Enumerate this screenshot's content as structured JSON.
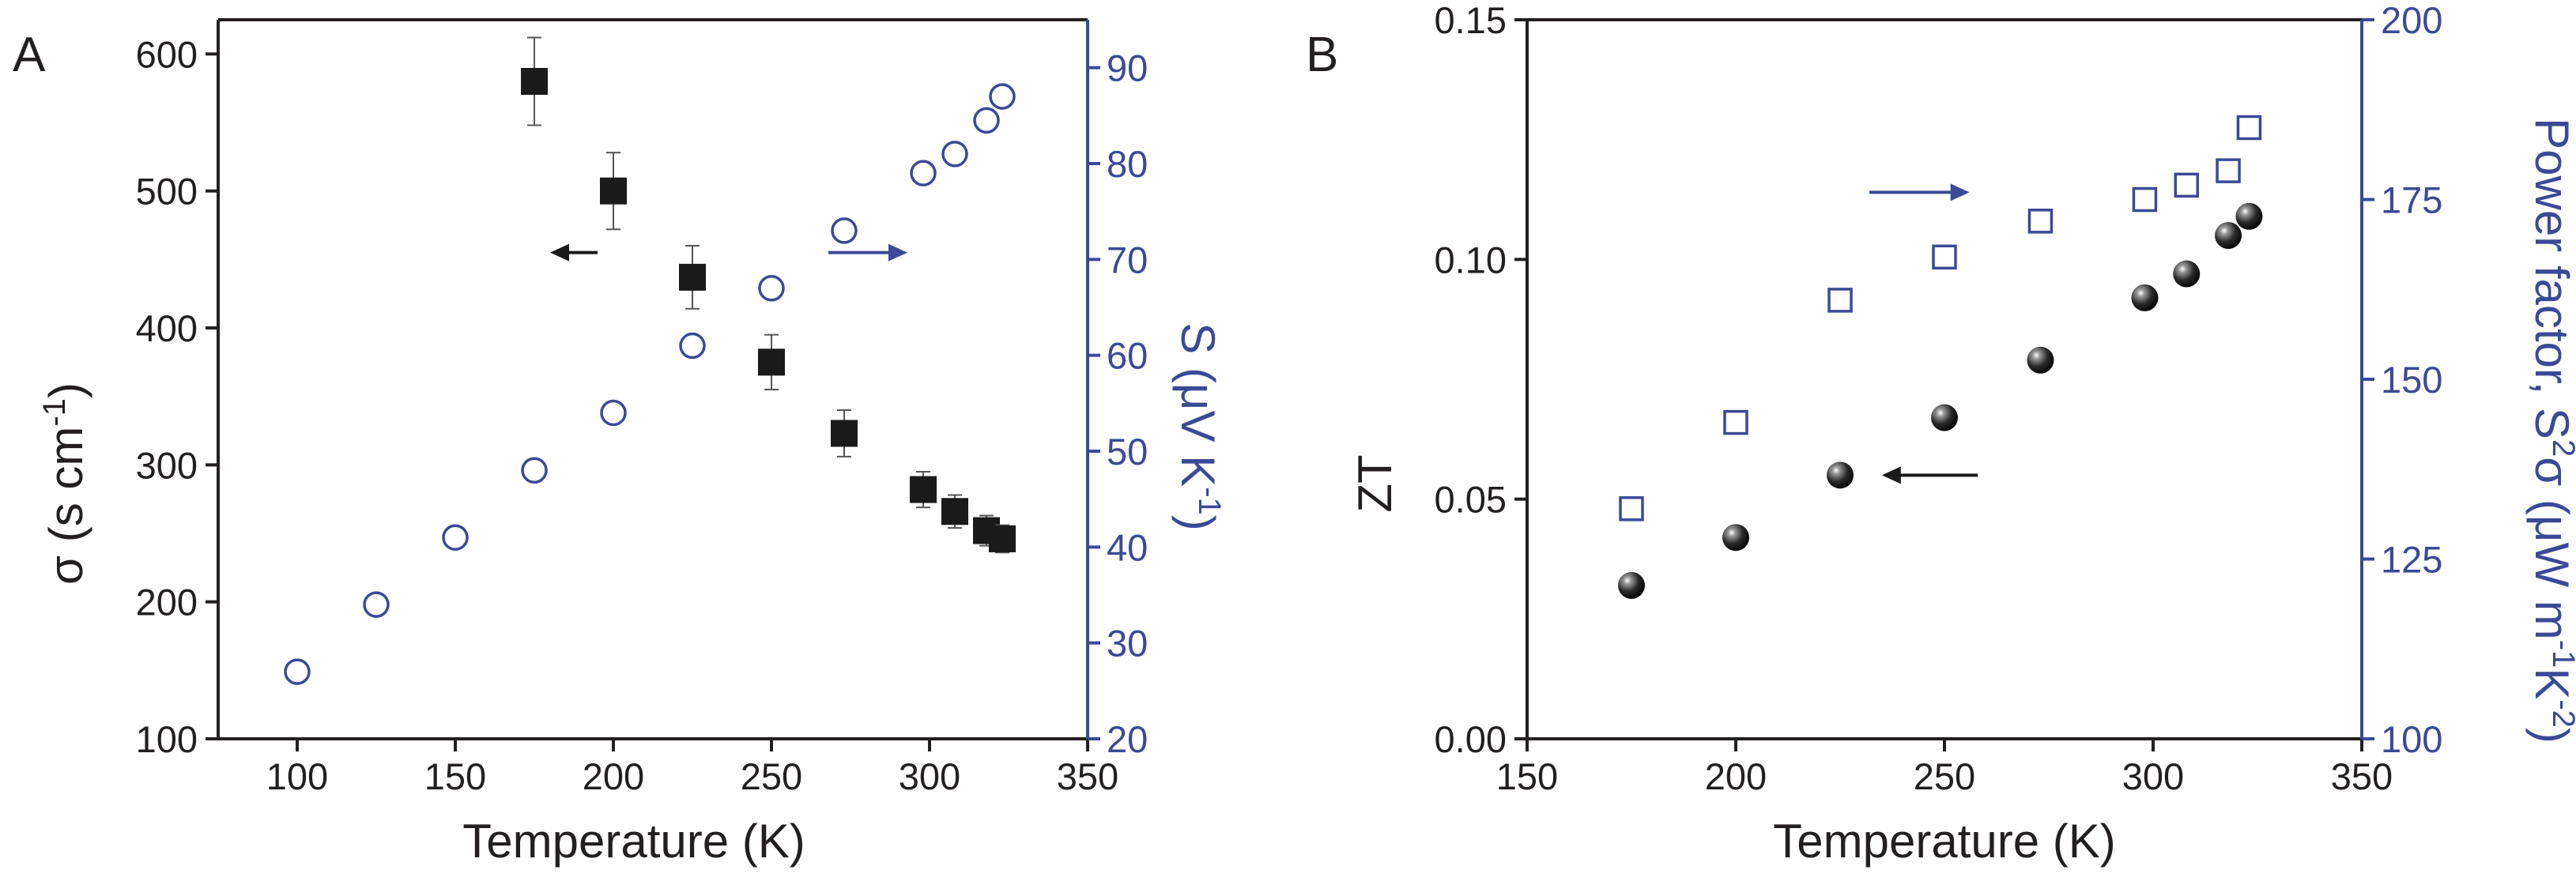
{
  "colors": {
    "black_series": "#1a1a1a",
    "blue_series": "#3a4a97",
    "axis": "#231f20"
  },
  "chart_data": [
    {
      "panel": "A",
      "type": "scatter",
      "xlabel": "Temperature (K)",
      "ylabel_left": "σ (s cm-1)",
      "ylabel_right": "S (μV K-1)",
      "xlim": [
        75,
        350
      ],
      "xticks": [
        100,
        150,
        200,
        250,
        300,
        350
      ],
      "ylim_left": [
        100,
        625
      ],
      "yticks_left": [
        100,
        200,
        300,
        400,
        500,
        600
      ],
      "ylim_right": [
        20,
        95
      ],
      "yticks_right": [
        20,
        30,
        40,
        50,
        60,
        70,
        80,
        90
      ],
      "series": [
        {
          "name": "sigma",
          "axis": "left",
          "marker": "filled-square",
          "x": [
            175,
            200,
            225,
            250,
            273,
            298,
            308,
            318,
            323
          ],
          "y": [
            580,
            500,
            437,
            375,
            323,
            282,
            266,
            252,
            246
          ],
          "error": [
            32,
            28,
            23,
            20,
            17,
            13,
            12,
            11,
            10
          ]
        },
        {
          "name": "seebeck",
          "axis": "right",
          "marker": "open-circle",
          "x": [
            100,
            125,
            150,
            175,
            200,
            225,
            250,
            273,
            298,
            308,
            318,
            323
          ],
          "y": [
            27,
            34,
            41,
            48,
            54,
            61,
            67,
            73,
            79,
            81,
            84.5,
            87
          ]
        }
      ],
      "arrows": [
        {
          "label": "left-axis-arrow",
          "direction": "left",
          "x": [
            180,
            195
          ],
          "y_left": 455,
          "axis": "left"
        },
        {
          "label": "right-axis-arrow",
          "direction": "right",
          "x": [
            268,
            293
          ],
          "y_left": 455,
          "axis": "right"
        }
      ]
    },
    {
      "panel": "B",
      "type": "scatter",
      "xlabel": "Temperature (K)",
      "ylabel_left": "ZT",
      "ylabel_right": "Power factor, S2σ (μW m-1K-2)",
      "xlim": [
        150,
        350
      ],
      "xticks": [
        150,
        200,
        250,
        300,
        350
      ],
      "ylim_left": [
        0,
        0.15
      ],
      "yticks_left": [
        "0.00",
        "0.05",
        "0.10",
        "0.15"
      ],
      "ylim_right": [
        100,
        200
      ],
      "yticks_right": [
        100,
        125,
        150,
        175,
        200
      ],
      "series": [
        {
          "name": "ZT",
          "axis": "left",
          "marker": "filled-sphere",
          "x": [
            175,
            200,
            225,
            250,
            273,
            298,
            308,
            318,
            323
          ],
          "y": [
            0.032,
            0.042,
            0.055,
            0.067,
            0.079,
            0.092,
            0.097,
            0.105,
            0.109
          ]
        },
        {
          "name": "power factor",
          "axis": "right",
          "marker": "open-square",
          "x": [
            175,
            200,
            225,
            250,
            273,
            298,
            308,
            318,
            323
          ],
          "y": [
            132,
            144,
            161,
            167,
            172,
            175,
            177,
            179,
            185
          ]
        }
      ],
      "arrows": [
        {
          "label": "left-axis-arrow",
          "direction": "left",
          "x": [
            235,
            258
          ],
          "y_left": 0.055,
          "axis": "left"
        },
        {
          "label": "right-axis-arrow",
          "direction": "right",
          "x": [
            232,
            256
          ],
          "y_left": 0.114,
          "axis": "right"
        }
      ]
    }
  ]
}
